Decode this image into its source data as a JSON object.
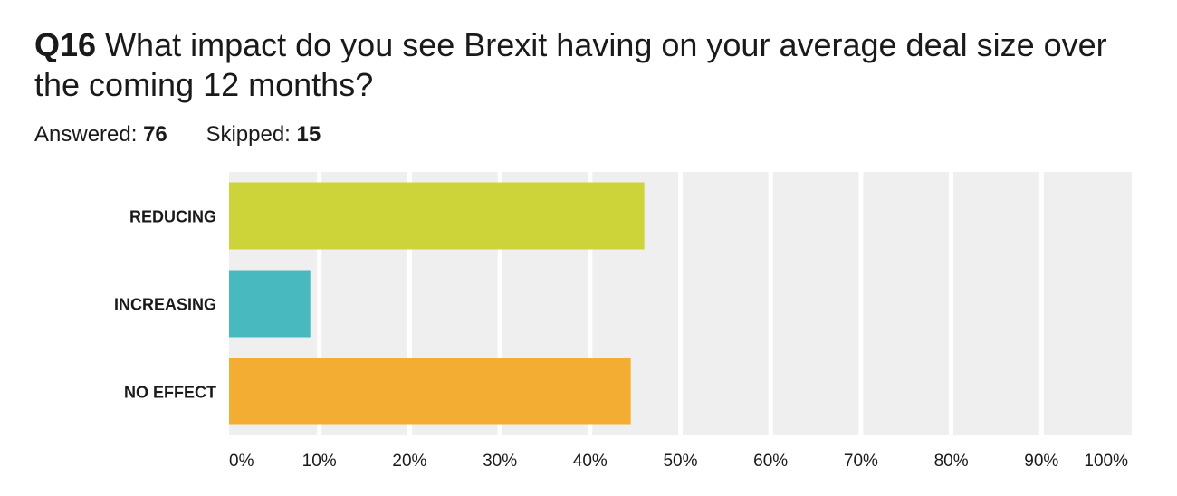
{
  "header": {
    "question_number": "Q16",
    "question_text": "What impact do you see Brexit having on your average deal size over the coming 12 months?",
    "answered_label": "Answered:",
    "answered_count": "76",
    "skipped_label": "Skipped:",
    "skipped_count": "15"
  },
  "chart_data": {
    "type": "bar",
    "orientation": "horizontal",
    "categories": [
      "REDUCING",
      "INCREASING",
      "NO EFFECT"
    ],
    "values": [
      46,
      9,
      44.5
    ],
    "colors": [
      "#cdd43a",
      "#48babf",
      "#f3ad33"
    ],
    "xlim": [
      0,
      100
    ],
    "xticks": [
      "0%",
      "10%",
      "20%",
      "30%",
      "40%",
      "50%",
      "60%",
      "70%",
      "80%",
      "90%",
      "100%"
    ],
    "grid": true,
    "plot_background": "#efefef",
    "gridline_color": "#ffffff"
  }
}
